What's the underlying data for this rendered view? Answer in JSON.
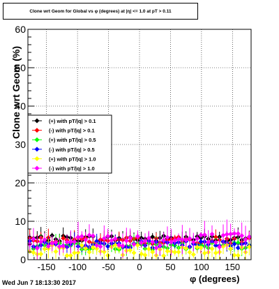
{
  "chart_data": {
    "type": "scatter",
    "title": "Clone wrt Geom for Global vs φ (degrees) at |η| <= 1.0 at pT > 0.11",
    "xlabel": "φ (degrees)",
    "ylabel": "Clone wrt Geom (%)",
    "xlim": [
      -180,
      180
    ],
    "ylim": [
      0,
      60
    ],
    "x_ticks": [
      "-150",
      "-100",
      "-50",
      "0",
      "50",
      "100",
      "150"
    ],
    "x_tick_values": [
      -150,
      -100,
      -50,
      0,
      50,
      100,
      150
    ],
    "y_ticks": [
      "0",
      "10",
      "20",
      "30",
      "40",
      "50",
      "60"
    ],
    "y_tick_values": [
      0,
      10,
      20,
      30,
      40,
      50,
      60
    ],
    "grid": true,
    "legend_position": "left",
    "series": [
      {
        "name": "(+) with pT/|q| > 0.1",
        "color": "#000000",
        "marker": "diamond",
        "y_level": 5.5,
        "spread": 0.8
      },
      {
        "name": "(-) with pT/|q| > 0.1",
        "color": "#ff0000",
        "marker": "diamond",
        "y_level": 5.0,
        "spread": 0.9
      },
      {
        "name": "(+) with pT/|q| > 0.5",
        "color": "#00ff00",
        "marker": "diamond",
        "y_level": 3.5,
        "spread": 0.9
      },
      {
        "name": "(-) with pT/|q| > 0.5",
        "color": "#0000ff",
        "marker": "diamond",
        "y_level": 4.0,
        "spread": 0.9
      },
      {
        "name": "(+) with pT/|q| > 1.0",
        "color": "#ffff00",
        "marker": "diamond",
        "y_level": 2.5,
        "spread": 1.5
      },
      {
        "name": "(-) with pT/|q| > 1.0",
        "color": "#ff00ff",
        "marker": "diamond",
        "y_level": 5.0,
        "spread": 2.0
      }
    ]
  },
  "footer": {
    "timestamp": "Wed Jun  7 18:13:30 2017"
  }
}
